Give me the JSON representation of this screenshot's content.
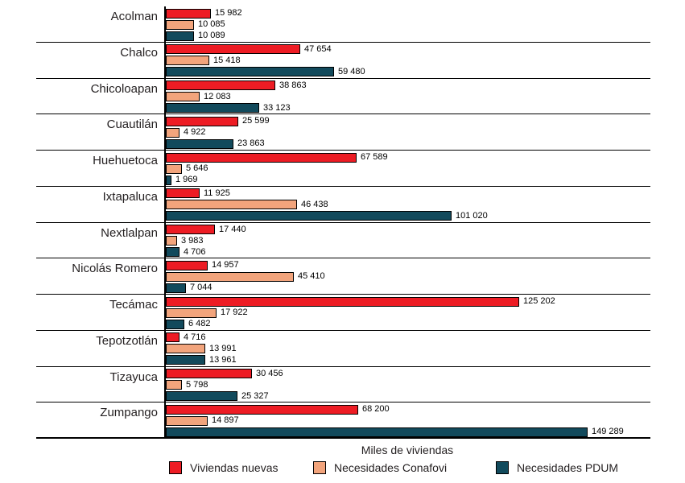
{
  "chart_data": {
    "type": "bar",
    "orientation": "horizontal",
    "xlabel": "Miles de viviendas",
    "categories": [
      "Acolman",
      "Chalco",
      "Chicoloapan",
      "Cuautilán",
      "Huehuetoca",
      "Ixtapaluca",
      "Nextlalpan",
      "Nicolás Romero",
      "Tecámac",
      "Tepotzotlán",
      "Tizayuca",
      "Zumpango"
    ],
    "series": [
      {
        "name": "Viviendas nuevas",
        "color": "#ED1C24",
        "values": [
          15982,
          47654,
          38863,
          25599,
          67589,
          11925,
          17440,
          14957,
          125202,
          4716,
          30456,
          68200
        ]
      },
      {
        "name": "Necesidades Conafovi",
        "color": "#F2A47C",
        "values": [
          10085,
          15418,
          12083,
          4922,
          5646,
          46438,
          3983,
          45410,
          17922,
          13991,
          5798,
          14897
        ]
      },
      {
        "name": "Necesidades PDUM",
        "color": "#124A5C",
        "values": [
          10089,
          59480,
          33123,
          23863,
          1969,
          101020,
          4706,
          7044,
          6482,
          13961,
          25327,
          149289
        ]
      }
    ],
    "xmax": 149289,
    "value_labels": true,
    "number_format": "space-thousands",
    "legend_position": "bottom",
    "grid": "category-separator-lines"
  }
}
